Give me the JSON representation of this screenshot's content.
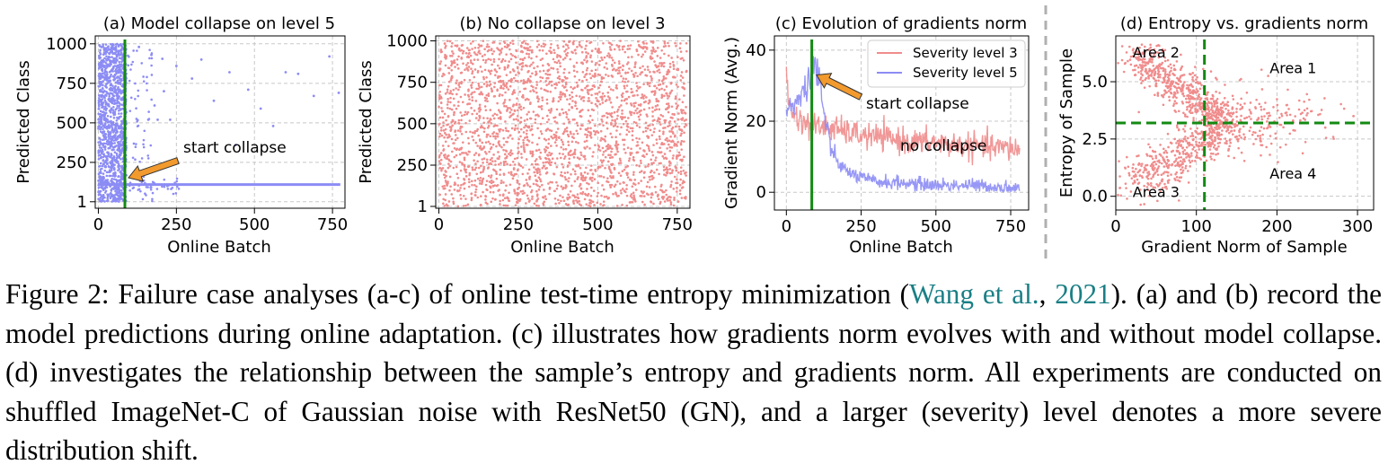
{
  "figure": {
    "number_label": "Figure 2:",
    "caption_text_1": "Failure case analyses (a-c) of online test-time entropy minimization (",
    "citation_author": "Wang et al.",
    "citation_sep": ", ",
    "citation_year": "2021",
    "caption_text_2": "). (a) and (b) record the model predictions during online adaptation. (c) illustrates how gradients norm evolves with and without model collapse. (d) investigates the relationship between the sample’s entropy and gradients norm. All experiments are conducted on shuffled ImageNet-C of Gaussian noise with ResNet50 (GN), and a larger (severity) level denotes a more severe distribution shift."
  },
  "colors": {
    "level5": "#8c8cf5",
    "level3": "#f08c8c",
    "collapse_line": "#138a13",
    "arrow": "#f29a2e",
    "grid": "#c8c8c8",
    "separator": "#b0b0b0"
  },
  "chart_data": [
    {
      "id": "a",
      "type": "scatter",
      "title": "(a) Model collapse on level 5",
      "xlabel": "Online Batch",
      "ylabel": "Predicted Class",
      "xlim": [
        -10,
        790
      ],
      "ylim": [
        -40,
        1050
      ],
      "xticks": [
        0,
        250,
        500,
        750
      ],
      "xtick_labels": [
        "0",
        "250",
        "500",
        "750"
      ],
      "yticks": [
        1,
        250,
        500,
        750,
        1000
      ],
      "ytick_labels": [
        "1",
        "250",
        "500",
        "750",
        "1000"
      ],
      "grid": true,
      "series": [
        {
          "color": "#8c8cf5",
          "description": "dense predictions across all classes for batches 0–85; after collapse, predictions concentrate at class ~110, with sparse scattered points",
          "collapse_class": 110,
          "sample_points": [
            [
              130,
              980
            ],
            [
              170,
              930
            ],
            [
              205,
              905
            ],
            [
              250,
              860
            ],
            [
              300,
              780
            ],
            [
              330,
              900
            ],
            [
              370,
              640
            ],
            [
              420,
              820
            ],
            [
              440,
              360
            ],
            [
              480,
              710
            ],
            [
              520,
              590
            ],
            [
              560,
              480
            ],
            [
              600,
              820
            ],
            [
              640,
              810
            ],
            [
              690,
              670
            ],
            [
              740,
              920
            ],
            [
              770,
              690
            ],
            [
              160,
              520
            ],
            [
              190,
              520
            ],
            [
              230,
              520
            ],
            [
              210,
              700
            ],
            [
              180,
              610
            ]
          ]
        }
      ],
      "vline": 85,
      "annotation": {
        "text": "start collapse",
        "xy": [
          85,
          130
        ],
        "xytext": [
          250,
          330
        ]
      }
    },
    {
      "id": "b",
      "type": "scatter",
      "title": "(b) No collapse on level 3",
      "xlabel": "Online Batch",
      "ylabel": "Predicted Class",
      "xlim": [
        -10,
        790
      ],
      "ylim": [
        -10,
        1030
      ],
      "xticks": [
        0,
        250,
        500,
        750
      ],
      "xtick_labels": [
        "0",
        "250",
        "500",
        "750"
      ],
      "yticks": [
        1,
        250,
        500,
        750,
        1000
      ],
      "ytick_labels": [
        "1",
        "250",
        "500",
        "750",
        "1000"
      ],
      "grid": true,
      "series": [
        {
          "color": "#f08c8c",
          "description": "predictions uniformly spread over classes 1–1000 for batches 0–780",
          "x_range": [
            0,
            780
          ],
          "y_range": [
            1,
            1000
          ]
        }
      ]
    },
    {
      "id": "c",
      "type": "line",
      "title": "(c) Evolution of gradients norm",
      "xlabel": "Online Batch",
      "ylabel": "Gradient Norm (Avg.)",
      "xlim": [
        -40,
        810
      ],
      "ylim": [
        -5,
        44
      ],
      "xticks": [
        0,
        250,
        500,
        750
      ],
      "xtick_labels": [
        "0",
        "250",
        "500",
        "750"
      ],
      "yticks": [
        0,
        20,
        40
      ],
      "ytick_labels": [
        "0",
        "20",
        "40"
      ],
      "grid": true,
      "legend_position": "top-right",
      "series": [
        {
          "name": "Severity level 3",
          "color": "#f08c8c",
          "x": [
            0,
            10,
            25,
            50,
            75,
            100,
            150,
            200,
            250,
            300,
            350,
            400,
            450,
            500,
            550,
            600,
            650,
            700,
            750,
            780
          ],
          "y": [
            33,
            24,
            22,
            20,
            19,
            18.5,
            18,
            17,
            16,
            15.5,
            15,
            14.5,
            14,
            14,
            13.5,
            13,
            13,
            12.5,
            12.5,
            12
          ]
        },
        {
          "name": "Severity level 5",
          "color": "#8c8cf5",
          "x": [
            0,
            10,
            25,
            50,
            75,
            90,
            100,
            110,
            130,
            150,
            175,
            200,
            250,
            300,
            400,
            500,
            600,
            700,
            780
          ],
          "y": [
            22,
            25,
            24,
            28,
            30,
            38,
            34,
            31,
            20,
            12,
            8,
            6,
            4,
            3,
            2.5,
            2,
            2,
            1.5,
            1
          ]
        }
      ],
      "vline": 85,
      "annotations": [
        {
          "text": "start collapse",
          "xy": [
            95,
            32
          ],
          "xytext": [
            260,
            24
          ]
        },
        {
          "text": "no collapse",
          "xy": [
            380,
            12
          ],
          "xytext": [
            380,
            12
          ]
        }
      ]
    },
    {
      "id": "d",
      "type": "scatter",
      "title": "(d) Entropy vs. gradients norm",
      "xlabel": "Gradient Norm of Sample",
      "ylabel": "Entropy of Sample",
      "xlim": [
        0,
        320
      ],
      "ylim": [
        -0.6,
        7.0
      ],
      "xticks": [
        0,
        100,
        200,
        300
      ],
      "xtick_labels": [
        "0",
        "100",
        "200",
        "300"
      ],
      "yticks": [
        0.0,
        2.5,
        5.0
      ],
      "ytick_labels": [
        "0.0",
        "2.5",
        "5.0"
      ],
      "grid": true,
      "series": [
        {
          "color": "#f08c8c",
          "description": "dense band from high-entropy/low-gradient (top-left) spreading to mid-entropy points with gradient norms up to ~300; a second branch toward low entropy near gradient 20–100",
          "sample_points": [
            [
              28,
              6.2
            ],
            [
              40,
              5.8
            ],
            [
              55,
              5.3
            ],
            [
              70,
              4.9
            ],
            [
              90,
              4.4
            ],
            [
              110,
              3.9
            ],
            [
              130,
              3.6
            ],
            [
              160,
              3.4
            ],
            [
              190,
              3.1
            ],
            [
              220,
              3.3
            ],
            [
              260,
              3.0
            ],
            [
              295,
              3.5
            ],
            [
              30,
              0.9
            ],
            [
              45,
              1.4
            ],
            [
              60,
              1.9
            ],
            [
              80,
              2.4
            ],
            [
              100,
              2.8
            ],
            [
              120,
              2.9
            ],
            [
              150,
              2.6
            ],
            [
              180,
              2.4
            ]
          ]
        }
      ],
      "hline": 3.2,
      "vline": 110,
      "area_labels": [
        {
          "text": "Area 2",
          "x": 50,
          "y": 6.3
        },
        {
          "text": "Area 1",
          "x": 220,
          "y": 5.6
        },
        {
          "text": "Area 3",
          "x": 50,
          "y": 0.2
        },
        {
          "text": "Area 4",
          "x": 220,
          "y": 1.0
        }
      ]
    }
  ]
}
